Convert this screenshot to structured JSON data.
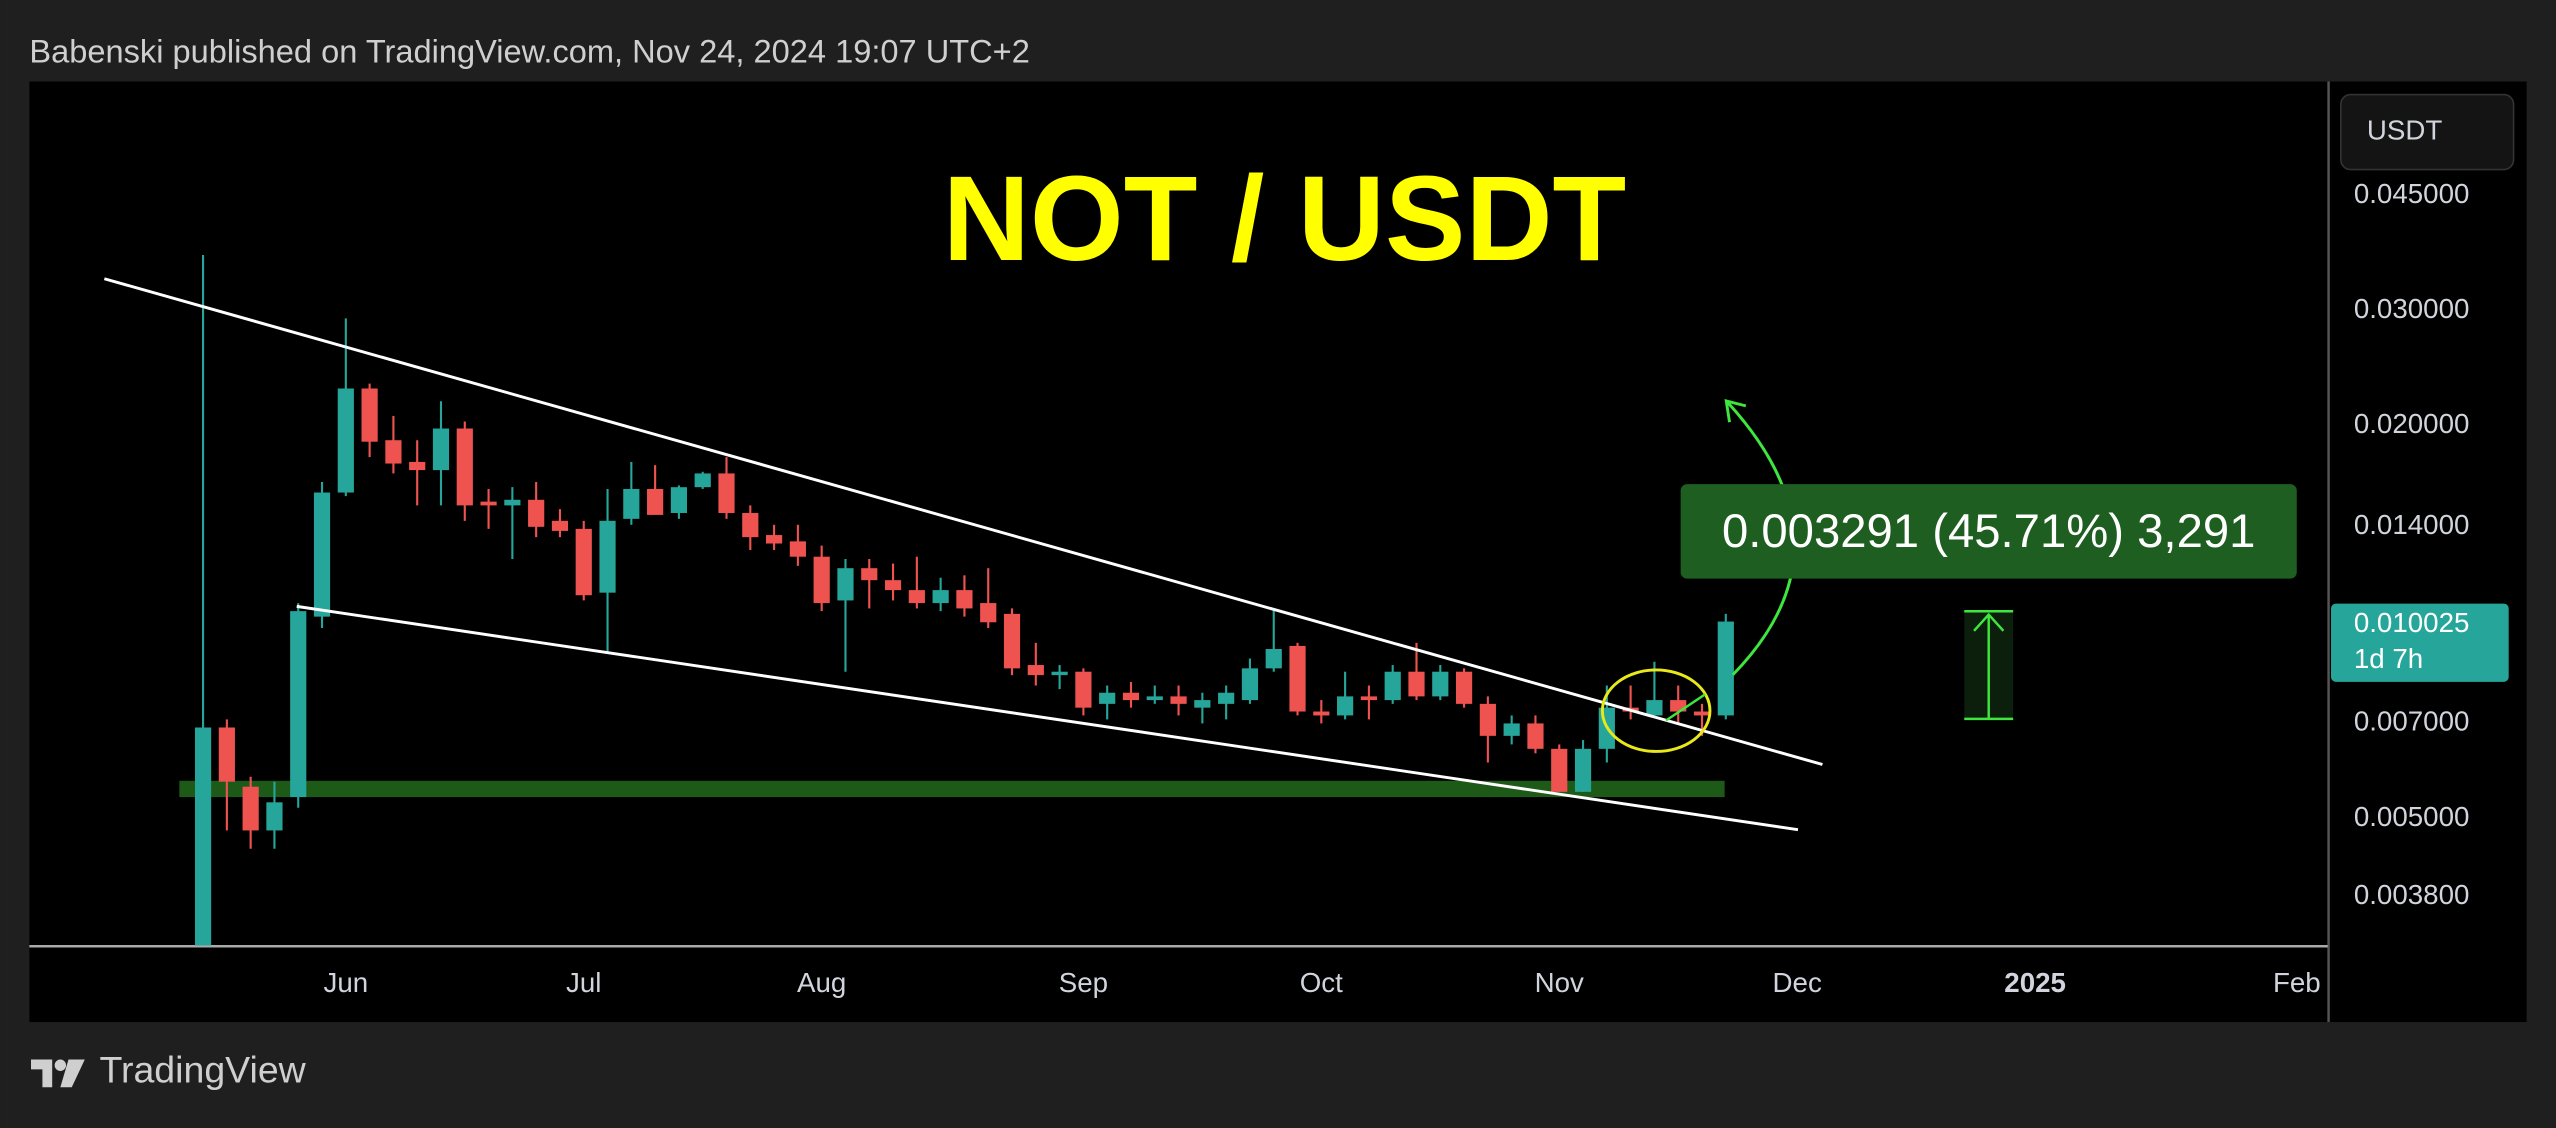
{
  "header": {
    "attribution": "Babenski published on TradingView.com, Nov 24, 2024 19:07 UTC+2"
  },
  "toolbar": {
    "currency": "USDT"
  },
  "footer": {
    "brand": "TradingView"
  },
  "chart_data": {
    "type": "candlestick",
    "title": "NOT / USDT",
    "open": [
      0.0032,
      0.0069,
      0.0056,
      0.0048,
      0.0054,
      0.0102,
      0.0158,
      0.0228,
      0.019,
      0.0176,
      0.0171,
      0.0198,
      0.0153,
      0.0151,
      0.0154,
      0.0143,
      0.0139,
      0.0111,
      0.0144,
      0.016,
      0.0147,
      0.0161,
      0.0169,
      0.0147,
      0.0136,
      0.0133,
      0.0126,
      0.0108,
      0.0121,
      0.0116,
      0.0112,
      0.0107,
      0.0112,
      0.0107,
      0.0103,
      0.0086,
      0.0083,
      0.0084,
      0.0075,
      0.0078,
      0.0076,
      0.0077,
      0.0074,
      0.0075,
      0.0076,
      0.0085,
      0.0092,
      0.0073,
      0.0072,
      0.0077,
      0.0076,
      0.0084,
      0.0077,
      0.0084,
      0.0075,
      0.0067,
      0.007,
      0.0064,
      0.0055,
      0.0064,
      0.0074,
      0.0072,
      0.0076,
      0.0073,
      0.0072
    ],
    "high": [
      0.0365,
      0.0071,
      0.0058,
      0.0057,
      0.0107,
      0.0164,
      0.0292,
      0.0232,
      0.0207,
      0.019,
      0.0218,
      0.0203,
      0.016,
      0.0161,
      0.0164,
      0.0149,
      0.0143,
      0.016,
      0.0176,
      0.0174,
      0.0162,
      0.017,
      0.0179,
      0.0151,
      0.0141,
      0.0141,
      0.0131,
      0.0125,
      0.0125,
      0.0123,
      0.0126,
      0.0117,
      0.0118,
      0.0121,
      0.0105,
      0.0093,
      0.0086,
      0.0085,
      0.008,
      0.0081,
      0.008,
      0.008,
      0.0078,
      0.008,
      0.0088,
      0.0105,
      0.0093,
      0.0076,
      0.0084,
      0.008,
      0.0086,
      0.0093,
      0.0086,
      0.0085,
      0.0077,
      0.0072,
      0.0072,
      0.0065,
      0.0066,
      0.008,
      0.008,
      0.0087,
      0.008,
      0.0075,
      0.0103
    ],
    "low": [
      0.0032,
      0.0048,
      0.0045,
      0.0045,
      0.0052,
      0.0098,
      0.0156,
      0.0179,
      0.0169,
      0.0151,
      0.0151,
      0.0143,
      0.0139,
      0.0125,
      0.0135,
      0.0135,
      0.0108,
      0.009,
      0.0141,
      0.0147,
      0.0144,
      0.016,
      0.0144,
      0.0129,
      0.0129,
      0.0122,
      0.0104,
      0.0084,
      0.0105,
      0.0108,
      0.0105,
      0.0104,
      0.0102,
      0.0098,
      0.0083,
      0.008,
      0.0079,
      0.0072,
      0.0071,
      0.0074,
      0.0075,
      0.0072,
      0.007,
      0.0071,
      0.0075,
      0.0084,
      0.0072,
      0.007,
      0.0071,
      0.0071,
      0.0075,
      0.0076,
      0.0076,
      0.0074,
      0.0061,
      0.0065,
      0.0063,
      0.0055,
      0.0055,
      0.0061,
      0.0071,
      0.0072,
      0.007,
      0.0067,
      0.0071
    ],
    "close": [
      0.0069,
      0.0057,
      0.0048,
      0.0053,
      0.0104,
      0.0158,
      0.0228,
      0.0189,
      0.0175,
      0.0171,
      0.0198,
      0.0151,
      0.0151,
      0.0154,
      0.014,
      0.0138,
      0.011,
      0.0143,
      0.016,
      0.0146,
      0.0161,
      0.0169,
      0.0147,
      0.0135,
      0.0132,
      0.0126,
      0.0107,
      0.0121,
      0.0116,
      0.0112,
      0.0107,
      0.0112,
      0.0105,
      0.01,
      0.0085,
      0.0083,
      0.0084,
      0.0074,
      0.0078,
      0.0076,
      0.0077,
      0.0075,
      0.0076,
      0.0078,
      0.0085,
      0.0091,
      0.0073,
      0.0072,
      0.0077,
      0.0076,
      0.0084,
      0.0077,
      0.0084,
      0.0075,
      0.0067,
      0.007,
      0.0064,
      0.0055,
      0.0064,
      0.0074,
      0.0073,
      0.0076,
      0.0073,
      0.0072,
      0.010025
    ],
    "up_color": "#26a69a",
    "down_color": "#ef5350",
    "log_scale": true,
    "ylim": [
      0.0032,
      0.0673
    ],
    "yticks": [
      {
        "value": 0.045,
        "label": "0.045000"
      },
      {
        "value": 0.03,
        "label": "0.030000"
      },
      {
        "value": 0.02,
        "label": "0.020000"
      },
      {
        "value": 0.014,
        "label": "0.014000"
      },
      {
        "value": 0.007,
        "label": "0.007000"
      },
      {
        "value": 0.005,
        "label": "0.005000"
      },
      {
        "value": 0.0038,
        "label": "0.003800"
      }
    ],
    "xlim": [
      -7.3,
      89.3
    ],
    "xticks": [
      {
        "value": 6,
        "label": "Jun"
      },
      {
        "value": 16,
        "label": "Jul"
      },
      {
        "value": 26,
        "label": "Aug"
      },
      {
        "value": 37,
        "label": "Sep"
      },
      {
        "value": 47,
        "label": "Oct"
      },
      {
        "value": 57,
        "label": "Nov"
      },
      {
        "value": 67,
        "label": "Dec"
      },
      {
        "value": 77,
        "label": "2025"
      },
      {
        "value": 88,
        "label": "Feb"
      }
    ],
    "countdown": "1d 7h",
    "measurement": "0.003291 (45.71%) 3,291"
  }
}
